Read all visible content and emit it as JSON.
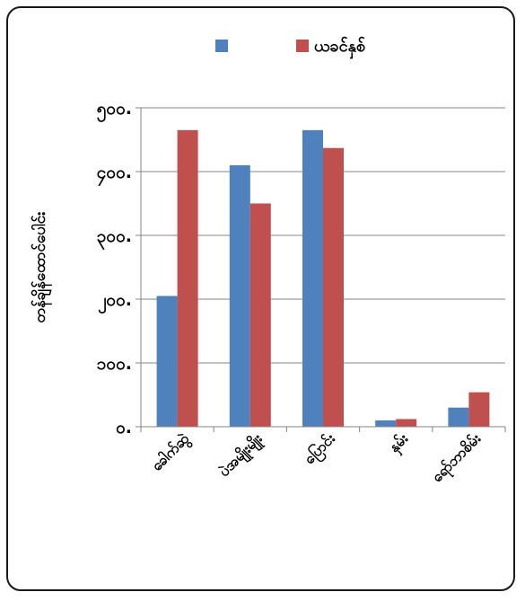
{
  "chart_data": {
    "type": "bar",
    "title": "",
    "xlabel": "",
    "ylabel": "တန်ချိန်ထောင်ပေါင်း",
    "categories": [
      "ခေါက်ဆွဲ",
      "ပဲအမျိုးမျိုး",
      "ပြောင်း",
      "နှမ်း",
      "ရော်ဘာစိမ်း"
    ],
    "series": [
      {
        "name": "",
        "color": "#4F81BD",
        "values": [
          205,
          410,
          465,
          10,
          30
        ]
      },
      {
        "name": "ယခင်နှစ်",
        "color": "#C0504D",
        "values": [
          465,
          350,
          437,
          12,
          54
        ]
      }
    ],
    "yticks": [
      0,
      100,
      200,
      300,
      400,
      500
    ],
    "ytick_labels": [
      "၀.",
      "၁၀၀.",
      "၂၀၀.",
      "၃၀၀.",
      "၄၀၀.",
      "၅၀၀."
    ],
    "ylim": [
      0,
      500
    ],
    "grid": true,
    "legend_position": "top"
  }
}
